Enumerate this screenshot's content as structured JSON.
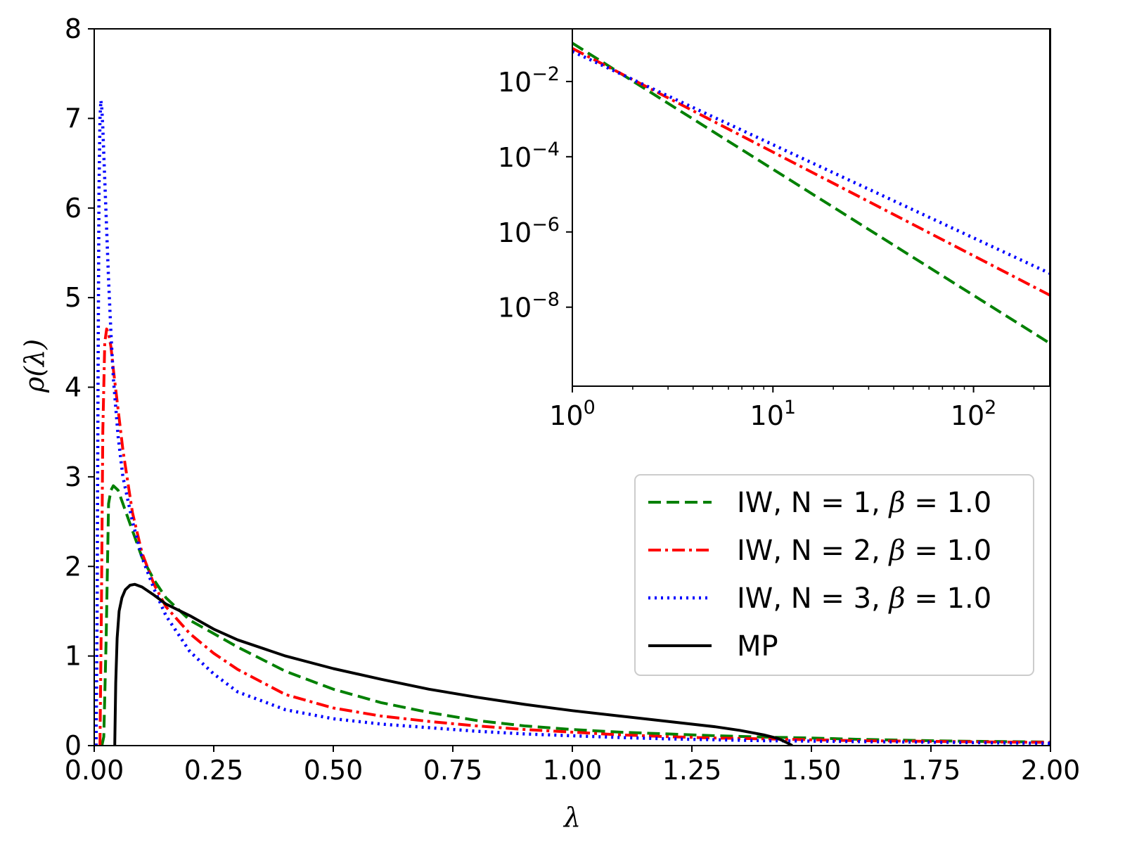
{
  "chart_data": [
    {
      "id": "main",
      "type": "line",
      "title": "",
      "xlabel": "λ",
      "ylabel": "ρ(λ)",
      "xlim": [
        0.0,
        2.0
      ],
      "ylim": [
        0,
        8
      ],
      "x_ticks": [
        "0.00",
        "0.25",
        "0.50",
        "0.75",
        "1.00",
        "1.25",
        "1.50",
        "1.75",
        "2.00"
      ],
      "x_tick_values": [
        0,
        0.25,
        0.5,
        0.75,
        1.0,
        1.25,
        1.5,
        1.75,
        2.0
      ],
      "y_ticks": [
        "0",
        "1",
        "2",
        "3",
        "4",
        "5",
        "6",
        "7",
        "8"
      ],
      "y_tick_values": [
        0,
        1,
        2,
        3,
        4,
        5,
        6,
        7,
        8
      ],
      "grid": false,
      "legend_position": "right",
      "series": [
        {
          "name": "IW, N = 1, β = 1.0",
          "label_prefix": "IW, N = 1, ",
          "label_beta": "β",
          "label_suffix": " = 1.0",
          "color": "#008000",
          "style": "dashed",
          "x": [
            0.016,
            0.02,
            0.025,
            0.03,
            0.035,
            0.04,
            0.05,
            0.06,
            0.08,
            0.1,
            0.125,
            0.15,
            0.2,
            0.25,
            0.3,
            0.4,
            0.5,
            0.6,
            0.7,
            0.8,
            0.9,
            1.0,
            1.1,
            1.2,
            1.3,
            1.4,
            1.5,
            1.6,
            1.7,
            1.8,
            1.9,
            2.0
          ],
          "y": [
            0.0,
            0.1,
            1.2,
            2.7,
            2.85,
            2.9,
            2.85,
            2.7,
            2.4,
            2.1,
            1.85,
            1.65,
            1.4,
            1.25,
            1.1,
            0.83,
            0.63,
            0.48,
            0.37,
            0.28,
            0.22,
            0.18,
            0.15,
            0.13,
            0.11,
            0.095,
            0.085,
            0.07,
            0.06,
            0.05,
            0.045,
            0.04
          ]
        },
        {
          "name": "IW, N = 2, β = 1.0",
          "label_prefix": "IW, N = 2, ",
          "label_beta": "β",
          "label_suffix": " = 1.0",
          "color": "#ff0000",
          "style": "dashdot",
          "x": [
            0.012,
            0.015,
            0.018,
            0.022,
            0.026,
            0.03,
            0.035,
            0.04,
            0.05,
            0.06,
            0.08,
            0.1,
            0.125,
            0.15,
            0.2,
            0.25,
            0.3,
            0.4,
            0.5,
            0.6,
            0.7,
            0.8,
            0.9,
            1.0,
            1.1,
            1.2,
            1.3,
            1.4,
            1.5,
            1.6,
            1.7,
            1.8,
            1.9,
            2.0
          ],
          "y": [
            0.0,
            1.5,
            3.5,
            4.5,
            4.65,
            4.6,
            4.45,
            4.2,
            3.75,
            3.3,
            2.6,
            2.15,
            1.8,
            1.55,
            1.25,
            1.03,
            0.85,
            0.57,
            0.42,
            0.33,
            0.27,
            0.22,
            0.18,
            0.15,
            0.12,
            0.1,
            0.085,
            0.075,
            0.065,
            0.055,
            0.05,
            0.045,
            0.04,
            0.035
          ]
        },
        {
          "name": "IW, N = 3, β = 1.0",
          "label_prefix": "IW, N = 3, ",
          "label_beta": "β",
          "label_suffix": " = 1.0",
          "color": "#0000ff",
          "style": "dotted",
          "x": [
            0.004,
            0.006,
            0.008,
            0.01,
            0.012,
            0.014,
            0.016,
            0.018,
            0.02,
            0.025,
            0.03,
            0.035,
            0.04,
            0.05,
            0.06,
            0.08,
            0.1,
            0.125,
            0.15,
            0.2,
            0.25,
            0.3,
            0.4,
            0.5,
            0.6,
            0.7,
            0.8,
            0.9,
            1.0,
            1.1,
            1.2,
            1.3,
            1.4,
            1.5,
            1.6,
            1.7,
            1.8,
            1.9,
            2.0
          ],
          "y": [
            0.0,
            1.5,
            4.0,
            6.2,
            7.0,
            7.2,
            7.1,
            6.9,
            6.6,
            5.9,
            5.2,
            4.6,
            4.1,
            3.45,
            3.0,
            2.5,
            2.1,
            1.75,
            1.45,
            1.05,
            0.8,
            0.6,
            0.4,
            0.3,
            0.24,
            0.2,
            0.16,
            0.13,
            0.11,
            0.09,
            0.075,
            0.065,
            0.055,
            0.05,
            0.045,
            0.04,
            0.035,
            0.03,
            0.025
          ]
        },
        {
          "name": "MP",
          "label_prefix": "MP",
          "label_beta": "",
          "label_suffix": "",
          "color": "#000000",
          "style": "solid",
          "x": [
            0.043,
            0.045,
            0.048,
            0.052,
            0.058,
            0.065,
            0.075,
            0.085,
            0.1,
            0.125,
            0.15,
            0.2,
            0.25,
            0.3,
            0.4,
            0.5,
            0.6,
            0.7,
            0.8,
            0.9,
            1.0,
            1.1,
            1.2,
            1.3,
            1.35,
            1.4,
            1.43,
            1.45,
            1.46
          ],
          "y": [
            0.0,
            0.7,
            1.2,
            1.5,
            1.65,
            1.74,
            1.79,
            1.8,
            1.77,
            1.68,
            1.58,
            1.45,
            1.3,
            1.18,
            1.0,
            0.86,
            0.74,
            0.63,
            0.54,
            0.46,
            0.39,
            0.33,
            0.27,
            0.21,
            0.17,
            0.12,
            0.08,
            0.03,
            0.0
          ]
        }
      ]
    },
    {
      "id": "inset",
      "type": "line",
      "title": "",
      "xlabel": "",
      "ylabel": "",
      "x_scale": "log",
      "y_scale": "log",
      "x_exp_lim": [
        0,
        2.38
      ],
      "y_exp_lim": [
        -10.1,
        -0.6
      ],
      "x_ticks": [
        {
          "base": "10",
          "exp": "0",
          "value_exp": 0
        },
        {
          "base": "10",
          "exp": "1",
          "value_exp": 1
        },
        {
          "base": "10",
          "exp": "2",
          "value_exp": 2
        }
      ],
      "y_ticks": [
        {
          "base": "10",
          "exp": "−2",
          "value_exp": -2
        },
        {
          "base": "10",
          "exp": "−4",
          "value_exp": -4
        },
        {
          "base": "10",
          "exp": "−6",
          "value_exp": -6
        },
        {
          "base": "10",
          "exp": "−8",
          "value_exp": -8
        }
      ],
      "grid": false,
      "series": [
        {
          "name": "IW, N = 1, β = 1.0",
          "color": "#008000",
          "style": "dashed",
          "x_exp": [
            0,
            2.38
          ],
          "y_exp": [
            -0.98,
            -8.96
          ]
        },
        {
          "name": "IW, N = 2, β = 1.0",
          "color": "#ff0000",
          "style": "dashdot",
          "x_exp": [
            0,
            2.38
          ],
          "y_exp": [
            -1.12,
            -7.68
          ]
        },
        {
          "name": "IW, N = 3, β = 1.0",
          "color": "#0000ff",
          "style": "dotted",
          "x_exp": [
            0,
            2.38
          ],
          "y_exp": [
            -1.2,
            -7.1
          ]
        }
      ]
    }
  ]
}
